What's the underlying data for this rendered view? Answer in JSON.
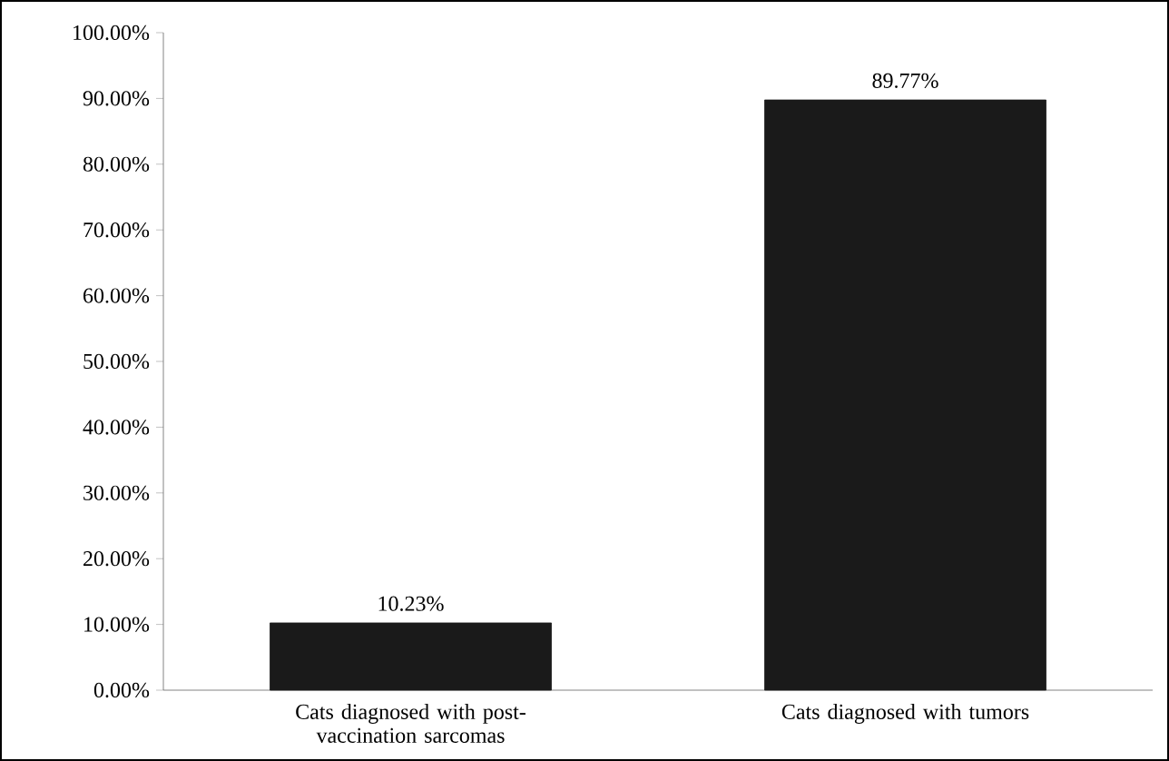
{
  "chart_data": {
    "type": "bar",
    "categories": [
      "Cats diagnosed with post-vaccination sarcomas",
      "Cats diagnosed with tumors"
    ],
    "values": [
      10.23,
      89.77
    ],
    "value_labels": [
      "10.23%",
      "89.77%"
    ],
    "color": "#1a1a1a",
    "ylim": [
      0,
      100
    ],
    "yticks": [
      {
        "value": 0,
        "label": "0.00%"
      },
      {
        "value": 10,
        "label": "10.00%"
      },
      {
        "value": 20,
        "label": "20.00%"
      },
      {
        "value": 30,
        "label": "30.00%"
      },
      {
        "value": 40,
        "label": "40.00%"
      },
      {
        "value": 50,
        "label": "50.00%"
      },
      {
        "value": 60,
        "label": "60.00%"
      },
      {
        "value": 70,
        "label": "70.00%"
      },
      {
        "value": 80,
        "label": "80.00%"
      },
      {
        "value": 90,
        "label": "90.00%"
      },
      {
        "value": 100,
        "label": "100.00%"
      }
    ],
    "grid": false
  }
}
